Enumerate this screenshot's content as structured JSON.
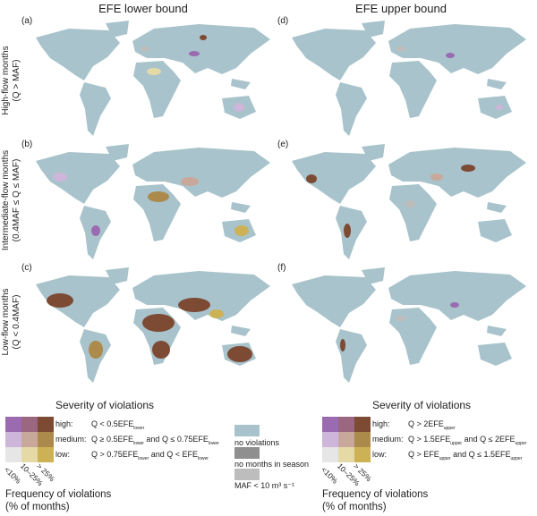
{
  "columns": [
    "EFE lower bound",
    "EFE upper bound"
  ],
  "rows": [
    {
      "line1": "High-flow months",
      "line2": "(Q > MAF)"
    },
    {
      "line1": "Intermediate-flow months",
      "line2": "(0.4MAF ≤ Q ≤ MAF)"
    },
    {
      "line1": "Low-flow months",
      "line2": "(Q < 0.4MAF)"
    }
  ],
  "panel_labels": [
    "(a)",
    "(b)",
    "(c)",
    "(d)",
    "(e)",
    "(f)"
  ],
  "colors": {
    "land": "#a8c3cb",
    "no_months": "#8f8f8f",
    "maf_small": "#bdbdbd",
    "matrix": [
      [
        "#9a6bb0",
        "#9a6680",
        "#7d4a34"
      ],
      [
        "#cdb6d9",
        "#c9a89c",
        "#ab8a4c"
      ],
      [
        "#e6e6e6",
        "#e5d9a6",
        "#ccb255"
      ]
    ]
  },
  "legend_lower": {
    "title": "Severity of violations",
    "high_key": "high:",
    "high_pre": "Q < 0.5EFE",
    "high_sub": "lower",
    "med_key": "medium:",
    "med_a": "Q ≥ 0.5EFE",
    "med_sub1": "lower",
    "med_b": " and Q ≤ 0.75EFE",
    "med_sub2": "lower",
    "low_key": "low:",
    "low_a": "Q > 0.75EFE",
    "low_sub1": "lower",
    "low_b": " and Q < EFE",
    "low_sub2": "lower",
    "freq": [
      "<10%",
      "10–25%",
      "> 25%"
    ],
    "freq_title1": "Frequency of violations",
    "freq_title2": "(% of months)"
  },
  "legend_upper": {
    "title": "Severity of violations",
    "high_key": "high:",
    "high_pre": "Q > 2EFE",
    "high_sub": "upper",
    "med_key": "medium:",
    "med_a": "Q > 1.5EFE",
    "med_sub1": "upper",
    "med_b": " and Q ≤ 2EFE",
    "med_sub2": "upper",
    "low_key": "low:",
    "low_a": "Q > EFE",
    "low_sub1": "upper",
    "low_b": " and Q ≤ 1.5EFE",
    "low_sub2": "upper",
    "freq": [
      "<10%",
      "10–25%",
      "> 25%"
    ],
    "freq_title1": "Frequency of violations",
    "freq_title2": "(% of months)"
  },
  "legend_middle": [
    "no violations",
    "no months in season",
    "MAF < 10 m³ s⁻¹"
  ]
}
